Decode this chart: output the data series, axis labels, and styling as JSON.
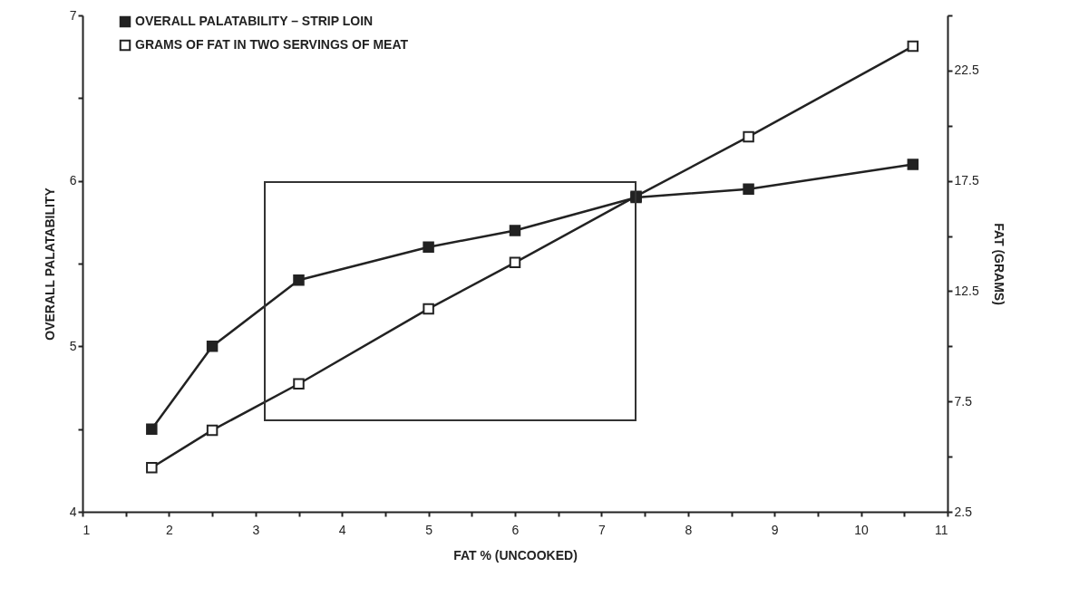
{
  "chart_data": {
    "type": "line",
    "xlabel": "FAT % (UNCOOKED)",
    "ylabel": "OVERALL PALATABILITY",
    "y2label": "FAT (GRAMS)",
    "x": [
      1.8,
      2.5,
      3.5,
      5,
      6,
      7.4,
      8.7,
      10.6
    ],
    "series": [
      {
        "name": "OVERALL PALATABILITY – STRIP LOIN",
        "color": "#222222",
        "values": [
          4.5,
          5.0,
          5.4,
          5.6,
          5.7,
          5.9,
          5.95,
          6.1
        ]
      },
      {
        "name": "GRAMS OF FAT IN TWO SERVINGS OF MEAT",
        "color": "#222222",
        "axis": "y2",
        "values": [
          4.5,
          6.2,
          8.3,
          11.7,
          13.8,
          16.8,
          19.5,
          23.6
        ]
      }
    ],
    "xlim": [
      1,
      11
    ],
    "xticks": [
      1,
      {
        "value": 1.5,
        "label": null
      },
      2,
      {
        "value": 2.5,
        "label": null
      },
      3,
      {
        "value": 3.5,
        "label": null
      },
      4,
      {
        "value": 4.5,
        "label": null
      },
      5,
      {
        "value": 5.5,
        "label": null
      },
      6,
      {
        "value": 6.5,
        "label": null
      },
      7,
      {
        "value": 7.5,
        "label": null
      },
      8,
      {
        "value": 8.5,
        "label": null
      },
      9,
      {
        "value": 9.5,
        "label": null
      },
      10,
      {
        "value": 10.5,
        "label": null
      },
      11
    ],
    "ylim": [
      4,
      7
    ],
    "yticks": [
      4,
      {
        "value": 4.5,
        "label": null
      },
      5,
      {
        "value": 5.5,
        "label": null
      },
      6,
      {
        "value": 6.5,
        "label": null
      },
      7
    ],
    "y2lim": [
      2.5,
      25
    ],
    "y2ticks": [
      2.5,
      {
        "value": 5,
        "label": null
      },
      7.5,
      {
        "value": 10,
        "label": null
      },
      12.5,
      {
        "value": 15,
        "label": null
      },
      17.5,
      {
        "value": 20,
        "label": null
      },
      22.5,
      {
        "value": 25,
        "label": null
      }
    ],
    "grid": false,
    "legend": "top left",
    "marker": "square",
    "line_style": "solid"
  }
}
